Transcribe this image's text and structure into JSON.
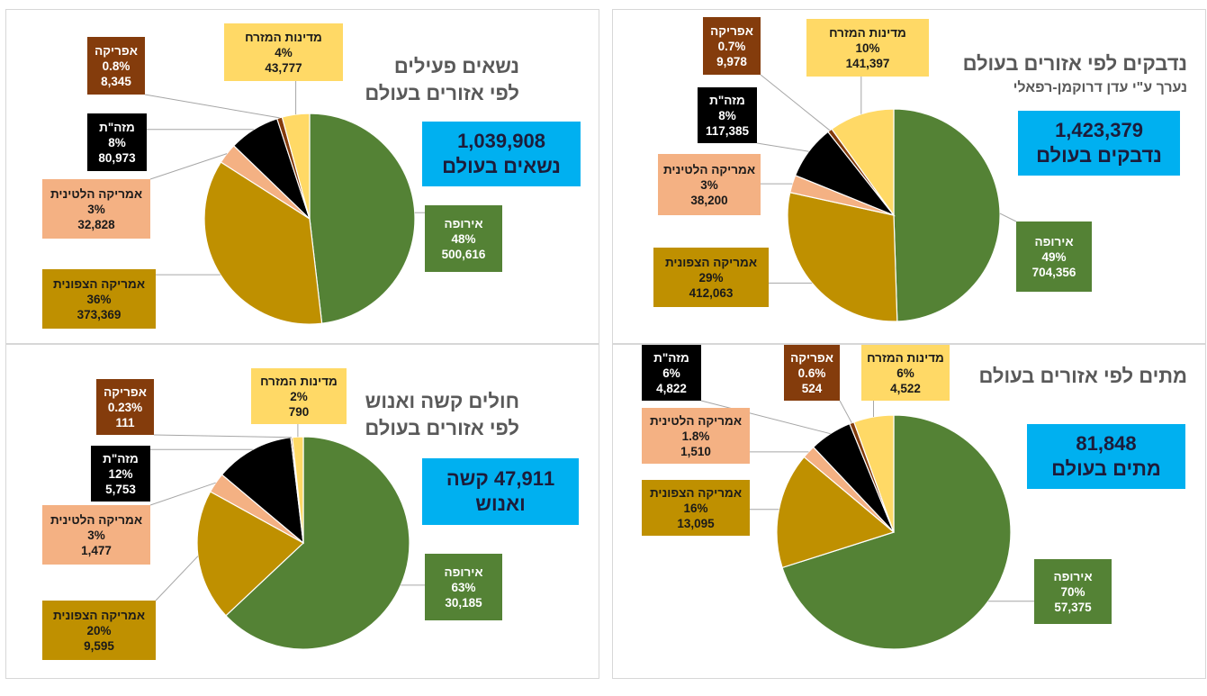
{
  "colors": {
    "europe": "#548235",
    "north_america": "#bf9000",
    "latin_america": "#f4b183",
    "east_asia": "#000000",
    "africa": "#843c0c",
    "middle_east": "#ffd966",
    "total_box": "#00b0f0"
  },
  "chart_data": [
    {
      "type": "pie",
      "title": "נדבקים לפי אזורים בעולם",
      "subtitle": "נערך ע\"י עדן דרוקמן-רפאלי",
      "total_lines": [
        "1,423,379",
        "נדבקים בעולם"
      ],
      "slices": [
        {
          "name": "אירופה",
          "percent": "49%",
          "value": 704356,
          "value_label": "704,356",
          "color": "#548235"
        },
        {
          "name": "אמריקה הצפונית",
          "percent": "29%",
          "value": 412063,
          "value_label": "412,063",
          "color": "#bf9000"
        },
        {
          "name": "אמריקה הלטינית",
          "percent": "3%",
          "value": 38200,
          "value_label": "38,200",
          "color": "#f4b183"
        },
        {
          "name": "מזה\"ת",
          "percent": "8%",
          "value": 117385,
          "value_label": "117,385",
          "color": "#000000"
        },
        {
          "name": "אפריקה",
          "percent": "0.7%",
          "value": 9978,
          "value_label": "9,978",
          "color": "#843c0c"
        },
        {
          "name": "מדינות המזרח",
          "percent": "10%",
          "value": 141397,
          "value_label": "141,397",
          "color": "#ffd966"
        }
      ]
    },
    {
      "type": "pie",
      "title": "נשאים פעילים",
      "title_line2": "לפי אזורים בעולם",
      "total_lines": [
        "1,039,908",
        "נשאים בעולם"
      ],
      "slices": [
        {
          "name": "אירופה",
          "percent": "48%",
          "value": 500616,
          "value_label": "500,616",
          "color": "#548235"
        },
        {
          "name": "אמריקה הצפונית",
          "percent": "36%",
          "value": 373369,
          "value_label": "373,369",
          "color": "#bf9000"
        },
        {
          "name": "אמריקה הלטינית",
          "percent": "3%",
          "value": 32828,
          "value_label": "32,828",
          "color": "#f4b183"
        },
        {
          "name": "מזה\"ת",
          "percent": "8%",
          "value": 80973,
          "value_label": "80,973",
          "color": "#000000"
        },
        {
          "name": "אפריקה",
          "percent": "0.8%",
          "value": 8345,
          "value_label": "8,345",
          "color": "#843c0c"
        },
        {
          "name": "מדינות המזרח",
          "percent": "4%",
          "value": 43777,
          "value_label": "43,777",
          "color": "#ffd966"
        }
      ]
    },
    {
      "type": "pie",
      "title": "מתים לפי אזורים בעולם",
      "total_lines": [
        "81,848",
        "מתים בעולם"
      ],
      "slices": [
        {
          "name": "אירופה",
          "percent": "70%",
          "value": 57375,
          "value_label": "57,375",
          "color": "#548235"
        },
        {
          "name": "אמריקה הצפונית",
          "percent": "16%",
          "value": 13095,
          "value_label": "13,095",
          "color": "#bf9000"
        },
        {
          "name": "אמריקה הלטינית",
          "percent": "1.8%",
          "value": 1510,
          "value_label": "1,510",
          "color": "#f4b183"
        },
        {
          "name": "מזה\"ת",
          "percent": "6%",
          "value": 4822,
          "value_label": "4,822",
          "color": "#000000"
        },
        {
          "name": "אפריקה",
          "percent": "0.6%",
          "value": 524,
          "value_label": "524",
          "color": "#843c0c"
        },
        {
          "name": "מדינות המזרח",
          "percent": "6%",
          "value": 4522,
          "value_label": "4,522",
          "color": "#ffd966"
        }
      ]
    },
    {
      "type": "pie",
      "title": "חולים קשה ואנוש",
      "title_line2": "לפי אזורים בעולם",
      "total_lines": [
        "47,911   קשה",
        "ואנוש"
      ],
      "slices": [
        {
          "name": "אירופה",
          "percent": "63%",
          "value": 30185,
          "value_label": "30,185",
          "color": "#548235"
        },
        {
          "name": "אמריקה הצפונית",
          "percent": "20%",
          "value": 9595,
          "value_label": "9,595",
          "color": "#bf9000"
        },
        {
          "name": "אמריקה הלטינית",
          "percent": "3%",
          "value": 1477,
          "value_label": "1,477",
          "color": "#f4b183"
        },
        {
          "name": "מזה\"ת",
          "percent": "12%",
          "value": 5753,
          "value_label": "5,753",
          "color": "#000000"
        },
        {
          "name": "אפריקה",
          "percent": "0.23%",
          "value": 111,
          "value_label": "111",
          "color": "#843c0c"
        },
        {
          "name": "מדינות המזרח",
          "percent": "2%",
          "value": 790,
          "value_label": "790",
          "color": "#ffd966"
        }
      ]
    }
  ]
}
